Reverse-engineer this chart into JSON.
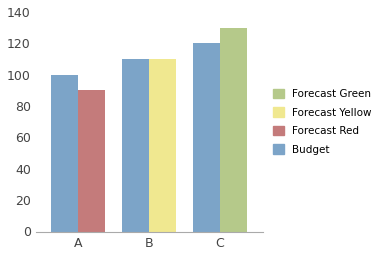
{
  "categories": [
    "A",
    "B",
    "C"
  ],
  "budget_values": [
    100,
    110,
    120
  ],
  "forecast_values": [
    90,
    110,
    130
  ],
  "forecast_colors": [
    "#c47b7b",
    "#f0e890",
    "#b5c98a"
  ],
  "budget_color": "#7ca4c8",
  "ylim": [
    0,
    140
  ],
  "yticks": [
    0,
    20,
    40,
    60,
    80,
    100,
    120,
    140
  ],
  "legend_labels": [
    "Forecast Green",
    "Forecast Yellow",
    "Forecast Red",
    "Budget"
  ],
  "legend_colors": [
    "#b5c98a",
    "#f0e890",
    "#c47b7b",
    "#7ca4c8"
  ],
  "bar_width": 0.38,
  "background_color": "#ffffff",
  "figsize": [
    3.81,
    2.57
  ],
  "dpi": 100
}
